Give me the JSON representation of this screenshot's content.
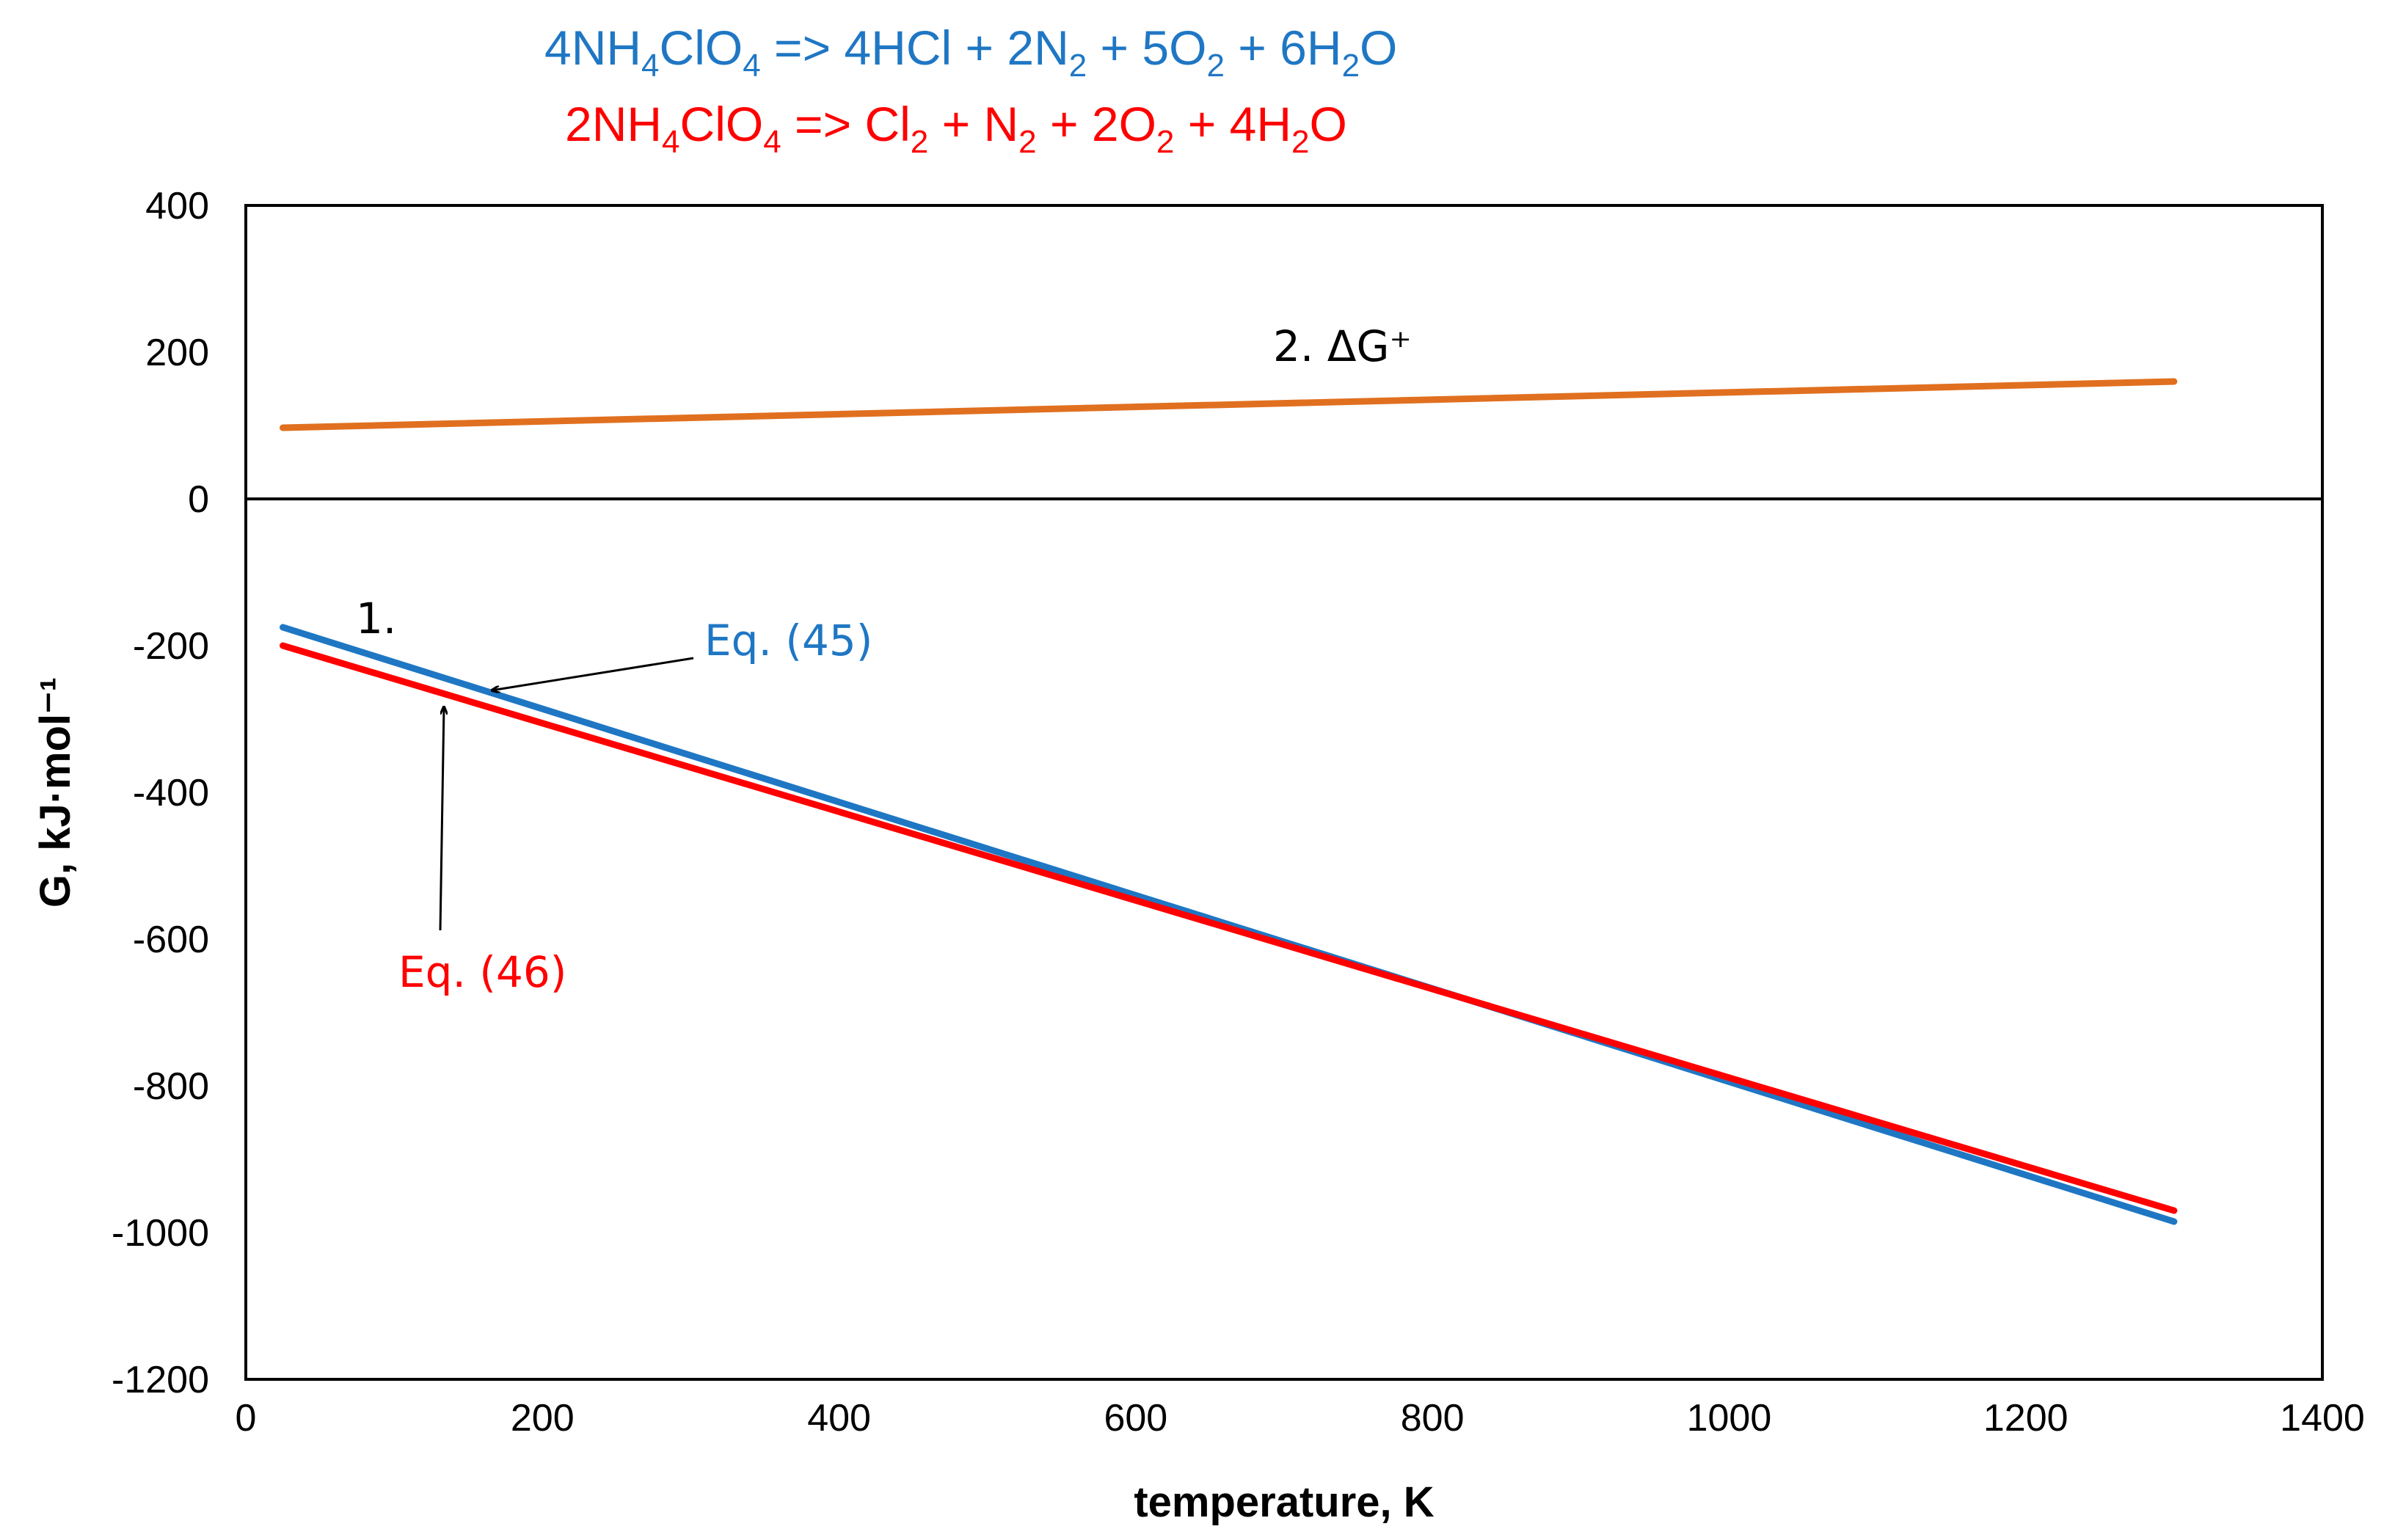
{
  "chart_data": {
    "type": "line",
    "equations": [
      {
        "name": "blue-equation",
        "color": "#1F77C4",
        "parts": [
          [
            "4NH"
          ],
          [
            "4",
            "sub"
          ],
          [
            "ClO"
          ],
          [
            "4",
            "sub"
          ],
          [
            "  => 4HCl + 2N"
          ],
          [
            "2",
            "sub"
          ],
          [
            " + 5O"
          ],
          [
            "2",
            "sub"
          ],
          [
            " + 6H"
          ],
          [
            "2",
            "sub"
          ],
          [
            "O"
          ]
        ]
      },
      {
        "name": "red-equation",
        "color": "#FF0000",
        "parts": [
          [
            "2NH"
          ],
          [
            "4",
            "sub"
          ],
          [
            "ClO"
          ],
          [
            "4",
            "sub"
          ],
          [
            " => Cl"
          ],
          [
            "2",
            "sub"
          ],
          [
            " + N"
          ],
          [
            "2",
            "sub"
          ],
          [
            " + 2O"
          ],
          [
            "2",
            "sub"
          ],
          [
            " + 4H"
          ],
          [
            "2",
            "sub"
          ],
          [
            "O"
          ]
        ]
      }
    ],
    "xlabel": "temperature, K",
    "ylabel": "G, kJ·mol⁻¹",
    "xlim": [
      0,
      1400
    ],
    "ylim": [
      -1200,
      400
    ],
    "xticks": [
      0,
      200,
      400,
      600,
      800,
      1000,
      1200,
      1400
    ],
    "yticks": [
      400,
      200,
      0,
      -200,
      -400,
      -600,
      -800,
      -1000,
      -1200
    ],
    "series": [
      {
        "name": "deltaG-plus",
        "label": "2. ΔG⁺",
        "color": "#E07020",
        "x": [
          25,
          1300
        ],
        "y": [
          97,
          160
        ]
      },
      {
        "name": "eq45",
        "label": "Eq. (45)",
        "color": "#1F77C4",
        "x": [
          25,
          1300
        ],
        "y": [
          -175,
          -985
        ]
      },
      {
        "name": "eq46",
        "label": "Eq. (46)",
        "color": "#FF0000",
        "x": [
          25,
          1300
        ],
        "y": [
          -200,
          -970
        ]
      }
    ],
    "annotations": {
      "series1_label": "1.",
      "deltaG_label": "2. ΔG⁺",
      "eq45_label": "Eq. (45)",
      "eq46_label": "Eq. (46)"
    }
  }
}
